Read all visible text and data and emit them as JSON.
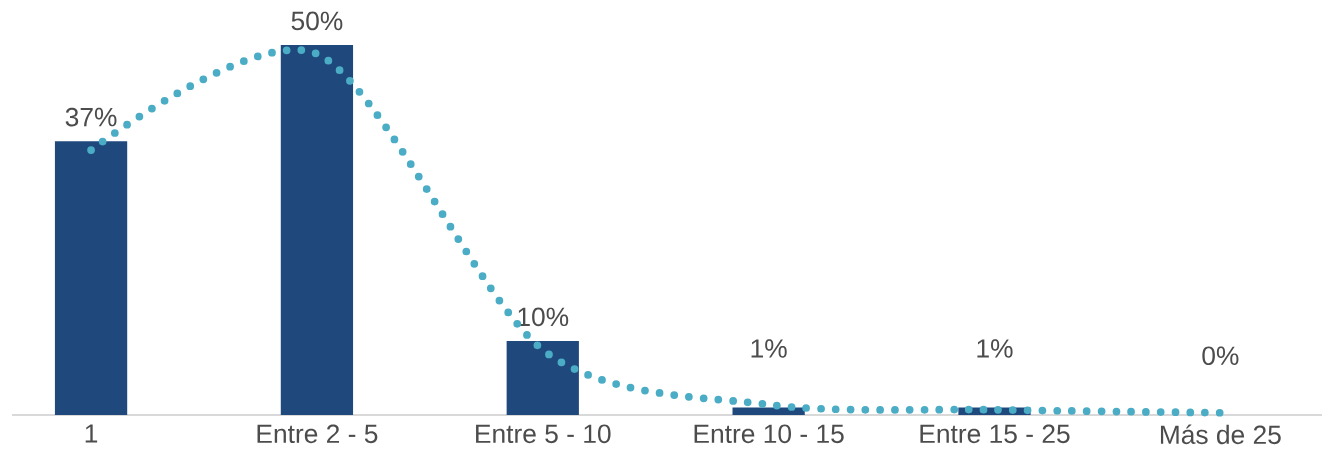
{
  "chart_data": {
    "type": "bar",
    "categories": [
      "1",
      "Entre 2 - 5",
      "Entre 5 - 10",
      "Entre 10 - 15",
      "Entre 15 - 25",
      "Más de 25"
    ],
    "series": [
      {
        "color": "#1f497d",
        "values": [
          37,
          50,
          10,
          1,
          1,
          0
        ],
        "value_labels": [
          "37%",
          "50%",
          "10%",
          "1%",
          "1%",
          "0%"
        ]
      },
      {
        "type": "line",
        "color": "#4bacc6",
        "line_style": "dotted",
        "values": [
          35.8,
          48.8,
          8.8,
          1.4,
          0.7,
          0.3
        ]
      }
    ]
  }
}
